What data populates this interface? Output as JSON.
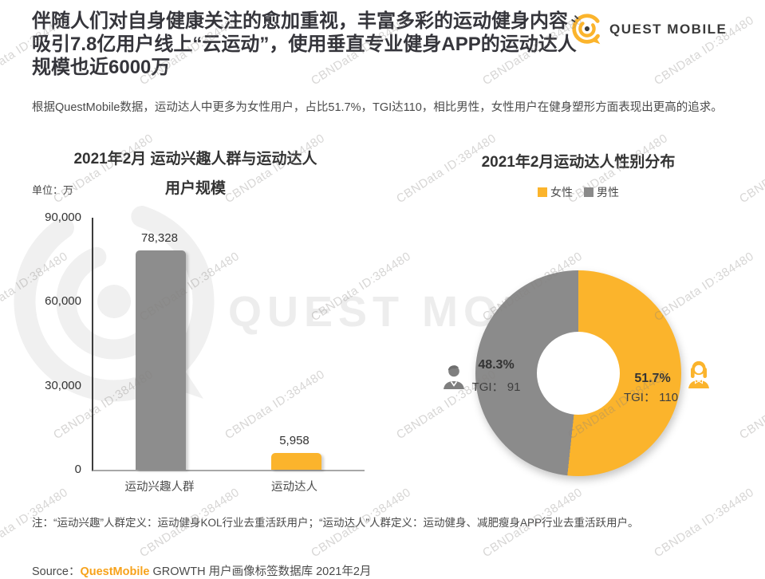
{
  "header": {
    "title_lines": [
      "伴随人们对自身健康关注的愈加重视，丰富多彩的运动健身内容",
      "吸引7.8亿用户线上“云运动”，使用垂直专业健身APP的运动达人",
      "规模也近6000万"
    ],
    "logo_text": "QUEST MOBILE"
  },
  "intro": {
    "text": "根据QuestMobile数据，运动达人中更多为女性用户，占比51.7%，TGI达110，相比男性，女性用户在健身塑形方面表现出更高的追求。"
  },
  "watermark": {
    "stamp": "CBNData ID:384480",
    "big_text": "QUEST MOBILE"
  },
  "chart_data": [
    {
      "type": "bar",
      "title": "2021年2月 运动兴趣人群与运动达人用户规模",
      "title_line1": "2021年2月 运动兴趣人群与运动达人",
      "title_line2": "用户规模",
      "unit_label": "单位：万",
      "categories": [
        "运动兴趣人群",
        "运动达人"
      ],
      "values": [
        78328,
        5958
      ],
      "value_labels": [
        "78,328",
        "5,958"
      ],
      "bar_colors": [
        "#8d8d8d",
        "#fbb42c"
      ],
      "ylabel": "万",
      "ylim": [
        0,
        90000
      ],
      "yticks": [
        0,
        30000,
        60000,
        90000
      ],
      "ytick_labels": [
        "0",
        "30,000",
        "60,000",
        "90,000"
      ],
      "grid": false
    },
    {
      "type": "pie",
      "donut": true,
      "title": "2021年2月运动达人性别分布",
      "legend_position": "top",
      "legend": [
        {
          "label": "女性",
          "color": "#fbb42c"
        },
        {
          "label": "男性",
          "color": "#8b8b8b"
        }
      ],
      "slices": [
        {
          "label": "女性",
          "value": 51.7,
          "pct_label": "51.7%",
          "tgi_label": "TGI： 110",
          "color": "#fbb42c"
        },
        {
          "label": "男性",
          "value": 48.3,
          "pct_label": "48.3%",
          "tgi_label": "TGI： 91",
          "color": "#8b8b8b"
        }
      ]
    }
  ],
  "footer": {
    "note": "注：“运动兴趣”人群定义：运动健身KOL行业去重活跃用户；“运动达人”人群定义：运动健身、减肥瘦身APP行业去重活跃用户。",
    "source_prefix": "Source：",
    "source_brand": "QuestMobile",
    "source_rest": " GROWTH 用户画像标签数据库 2021年2月"
  },
  "colors": {
    "accent_yellow": "#fbb42c",
    "gray": "#8b8b8b",
    "title_text": "#35353b",
    "brand_orange": "#f7a21b"
  }
}
